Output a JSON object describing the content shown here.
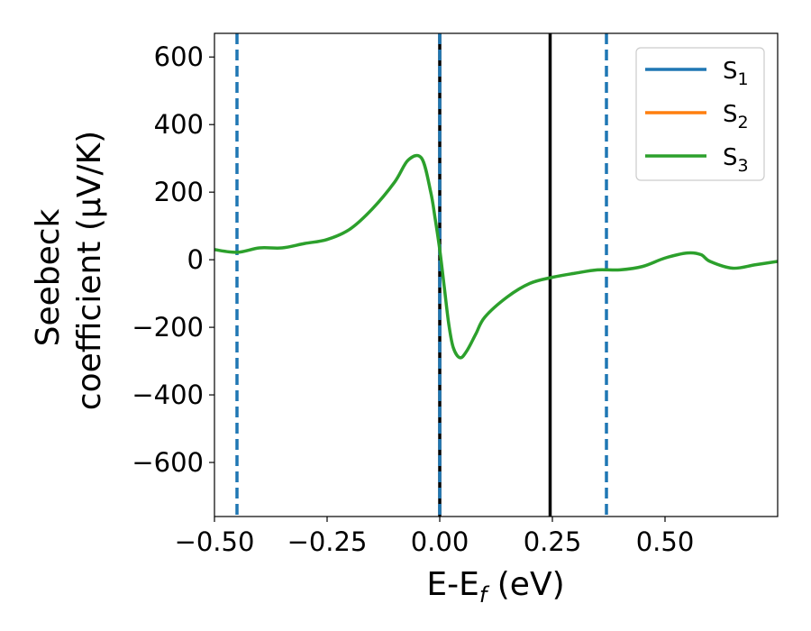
{
  "chart_data": {
    "type": "line",
    "xlabel": {
      "main": "E-E",
      "sub": "f",
      "suffix": " (eV)"
    },
    "ylabel": {
      "line1": "Seebeck",
      "line2": "coefficient  (μV/K)"
    },
    "xlim": [
      -0.5,
      0.75
    ],
    "ylim": [
      -760,
      670
    ],
    "x_ticks": [
      -0.5,
      -0.25,
      0.0,
      0.25,
      0.5
    ],
    "x_tick_labels": [
      "−0.50",
      "−0.25",
      "0.00",
      "0.25",
      "0.50"
    ],
    "y_ticks": [
      600,
      400,
      200,
      0,
      -200,
      -400,
      -600
    ],
    "y_tick_labels": [
      "600",
      "400",
      "200",
      "0",
      "−200",
      "−400",
      "−600"
    ],
    "legend": {
      "placement": "upper-right",
      "entries": [
        {
          "label": "S",
          "sub": "1",
          "color": "#1f77b4"
        },
        {
          "label": "S",
          "sub": "2",
          "color": "#ff7f0e"
        },
        {
          "label": "S",
          "sub": "3",
          "color": "#2ca02c"
        }
      ]
    },
    "series": [
      {
        "name": "S3",
        "color": "#2ca02c",
        "x": [
          -0.5,
          -0.45,
          -0.4,
          -0.35,
          -0.3,
          -0.25,
          -0.2,
          -0.15,
          -0.1,
          -0.07,
          -0.04,
          -0.02,
          -0.01,
          0.0,
          0.01,
          0.02,
          0.03,
          0.045,
          0.06,
          0.08,
          0.1,
          0.15,
          0.2,
          0.25,
          0.3,
          0.35,
          0.4,
          0.45,
          0.5,
          0.55,
          0.58,
          0.6,
          0.65,
          0.7,
          0.75
        ],
        "y": [
          30,
          22,
          35,
          35,
          48,
          60,
          90,
          150,
          230,
          295,
          300,
          200,
          120,
          30,
          -80,
          -190,
          -260,
          -290,
          -270,
          -220,
          -170,
          -110,
          -70,
          -52,
          -40,
          -30,
          -30,
          -20,
          5,
          20,
          15,
          -5,
          -25,
          -15,
          -5
        ]
      }
    ],
    "vlines": [
      {
        "x": -0.45,
        "style": "dashed",
        "color": "#1f77b4"
      },
      {
        "x": 0.0,
        "style": "solid",
        "color": "#000000"
      },
      {
        "x": 0.0,
        "style": "dashed",
        "color": "#1f77b4"
      },
      {
        "x": 0.245,
        "style": "solid",
        "color": "#000000"
      },
      {
        "x": 0.37,
        "style": "dashed",
        "color": "#1f77b4"
      }
    ],
    "grid": false
  }
}
